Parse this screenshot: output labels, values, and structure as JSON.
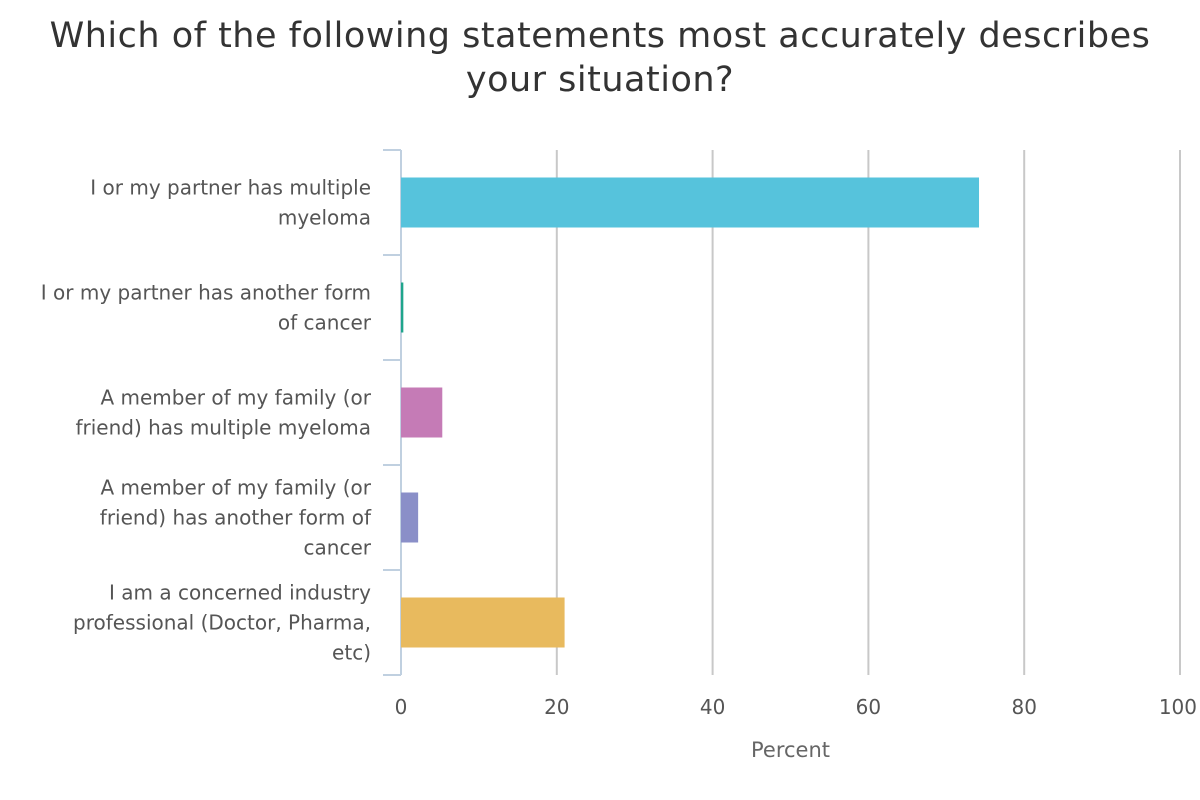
{
  "chart_data": {
    "type": "bar",
    "orientation": "horizontal",
    "title_lines": [
      "Which of the following statements most accurately describes",
      "your situation?"
    ],
    "categories": [
      [
        "I or my partner has multiple",
        "myeloma"
      ],
      [
        "I or my partner has another form",
        "of cancer"
      ],
      [
        "A member of my family (or",
        "friend) has multiple myeloma"
      ],
      [
        "A member of my family (or",
        "friend) has another form of",
        "cancer"
      ],
      [
        "I am a concerned industry",
        "professional (Doctor, Pharma,",
        "etc)"
      ]
    ],
    "values": [
      74.2,
      0.3,
      5.3,
      2.2,
      21.0
    ],
    "colors": [
      "#56C3DC",
      "#1FA58B",
      "#C57BB6",
      "#8A8FC8",
      "#E8BA5E"
    ],
    "xlabel": "Percent",
    "xlim": [
      0,
      100
    ],
    "xticks": [
      0,
      20,
      40,
      60,
      80,
      100
    ],
    "grid": true,
    "legend": "none"
  }
}
